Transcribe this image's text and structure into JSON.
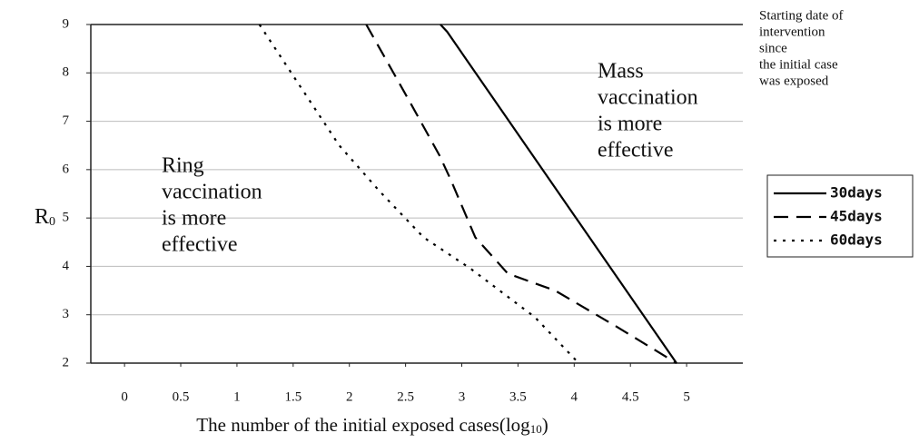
{
  "chart_data": {
    "type": "line",
    "ylabel": {
      "text": "R",
      "sub": "0"
    },
    "xlabel": [
      "The number of  the initial exposed cases(log",
      "10",
      ")"
    ],
    "xlim": [
      -0.3,
      5.5
    ],
    "ylim": [
      2,
      9
    ],
    "xticks": [
      0,
      0.5,
      1,
      1.5,
      2,
      2.5,
      3,
      3.5,
      4,
      4.5,
      5
    ],
    "yticks": [
      2,
      3,
      4,
      5,
      6,
      7,
      8,
      9
    ],
    "grid": true,
    "series": [
      {
        "name": "30days",
        "color": "#000000",
        "line_style": "solid",
        "x": [
          2.81,
          2.87,
          4.91
        ],
        "values": [
          9,
          8.85,
          2
        ]
      },
      {
        "name": "45days",
        "color": "#000000",
        "line_style": "dashed",
        "x": [
          2.15,
          2.55,
          2.8,
          2.9,
          3.12,
          3.41,
          3.83,
          4.38,
          4.91
        ],
        "values": [
          9,
          7.35,
          6.3,
          5.8,
          4.6,
          3.85,
          3.5,
          2.75,
          2
        ]
      },
      {
        "name": "60days",
        "color": "#000000",
        "line_style": "dotted",
        "x": [
          1.2,
          1.54,
          1.91,
          2.27,
          2.66,
          3.08,
          3.65,
          4.04
        ],
        "values": [
          9,
          7.8,
          6.5,
          5.55,
          4.6,
          3.95,
          2.95,
          2
        ]
      }
    ],
    "annotations": [
      [
        "Ring",
        "vaccination",
        "is more",
        "effective"
      ],
      [
        "Mass",
        "vaccination",
        "is more",
        "effective"
      ],
      [
        "Starting date of",
        "intervention",
        "since",
        "the initial case",
        "was exposed"
      ]
    ]
  }
}
